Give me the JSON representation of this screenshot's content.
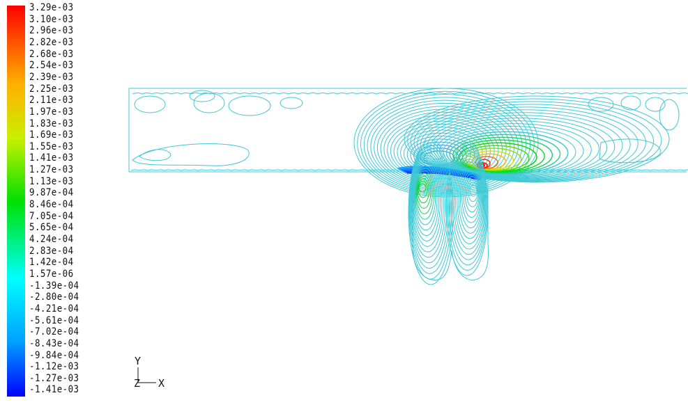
{
  "chart_data": {
    "type": "contour",
    "title": "",
    "colorbar": {
      "colors": {
        "max": "#ff0000",
        "upper": "#ffb000",
        "mid_high": "#c8f000",
        "mid": "#00e000",
        "mid_low": "#00ffff",
        "lower": "#00a0ff",
        "min": "#0000ff"
      },
      "labels": [
        "3.29e-03",
        "3.10e-03",
        "2.96e-03",
        "2.82e-03",
        "2.68e-03",
        "2.54e-03",
        "2.39e-03",
        "2.25e-03",
        "2.11e-03",
        "1.97e-03",
        "1.83e-03",
        "1.69e-03",
        "1.55e-03",
        "1.41e-03",
        "1.27e-03",
        "1.13e-03",
        "9.87e-04",
        "8.46e-04",
        "7.05e-04",
        "5.65e-04",
        "4.24e-04",
        "2.83e-04",
        "1.42e-04",
        "1.57e-06",
        "-1.39e-04",
        "-2.80e-04",
        "-4.21e-04",
        "-5.61e-04",
        "-7.02e-04",
        "-8.43e-04",
        "-9.84e-04",
        "-1.12e-03",
        "-1.27e-03",
        "-1.41e-03"
      ]
    },
    "contour_color": "#3ec9d6",
    "axes_triad": {
      "y_label": "Y",
      "z_label": "Z",
      "x_label": "X"
    }
  }
}
